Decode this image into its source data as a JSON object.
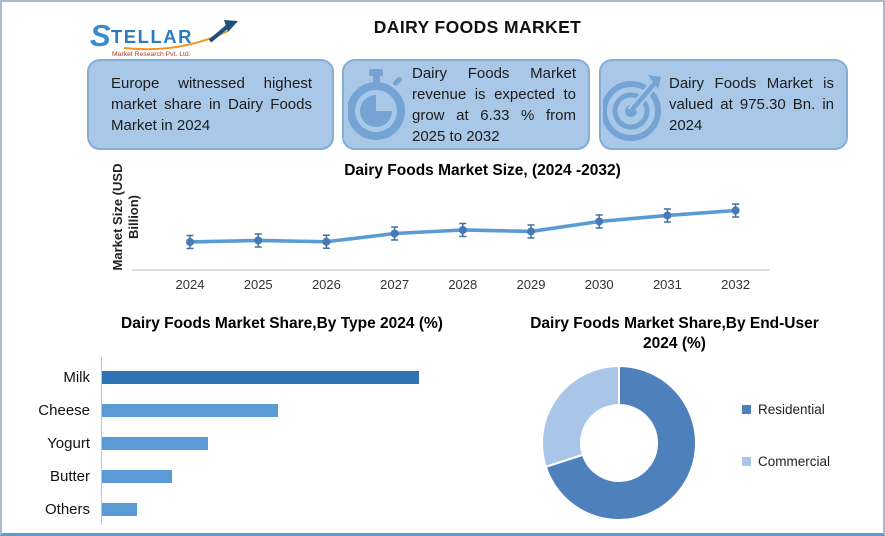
{
  "header": {
    "title": "DAIRY FOODS MARKET",
    "logo": {
      "brand": "STELLAR",
      "subtitle": "Market Research Pvt. Ltd."
    }
  },
  "highlight_boxes": [
    {
      "icon": "none",
      "text": "Europe witnessed highest market share in Dairy Foods Market in 2024"
    },
    {
      "icon": "stopwatch-icon",
      "text": "Dairy Foods Market revenue is expected to grow at 6.33 % from 2025 to 2032"
    },
    {
      "icon": "target-icon",
      "text": "Dairy Foods Market is valued at 975.30 Bn. in 2024"
    }
  ],
  "colors": {
    "line": "#5b9bd5",
    "marker": "#41719c",
    "bar_highlight": "#2e74b5",
    "bar_normal": "#5b9bd5",
    "box_fill": "#a9c8e8",
    "box_border": "#85add6",
    "icon_blue": "#74a3d4",
    "residential": "#4e80bc",
    "commercial": "#a9c6e8",
    "axis_gray": "#c9c9c9"
  },
  "chart_data": [
    {
      "type": "line",
      "title": "Dairy Foods Market Size, (2024 -2032)",
      "ylabel": "Market Size (USD Billion)",
      "xlabel": "",
      "x": [
        "2024",
        "2025",
        "2026",
        "2027",
        "2028",
        "2029",
        "2030",
        "2031",
        "2032"
      ],
      "series": [
        {
          "name": "Market Size (USD Billion)",
          "values": [
            975.3,
            1005,
            980,
            1142,
            1211,
            1182,
            1378,
            1496,
            1593.6
          ]
        }
      ],
      "ylim": [
        425,
        1800
      ],
      "grid": false,
      "error_bars": true,
      "legend_position": "none"
    },
    {
      "type": "bar",
      "orientation": "horizontal",
      "title": "Dairy Foods Market Share,By Type 2024 (%)",
      "categories": [
        "Milk",
        "Cheese",
        "Yogurt",
        "Butter",
        "Others"
      ],
      "values": [
        45,
        25,
        15,
        10,
        5
      ],
      "xlim": [
        0,
        50
      ],
      "xlabel": "",
      "ylabel": "",
      "grid": false,
      "bar_colors": [
        "#2e74b5",
        "#5b9bd5",
        "#5b9bd5",
        "#5b9bd5",
        "#5b9bd5"
      ]
    },
    {
      "type": "pie",
      "subtype": "donut",
      "title": "Dairy Foods Market Share,By End-User 2024 (%)",
      "labels": [
        "Residential",
        "Commercial"
      ],
      "values": [
        70,
        30
      ],
      "colors": [
        "#4e80bc",
        "#a9c6e8"
      ],
      "legend_position": "right",
      "start_angle_deg": 0,
      "direction": "clockwise"
    }
  ]
}
